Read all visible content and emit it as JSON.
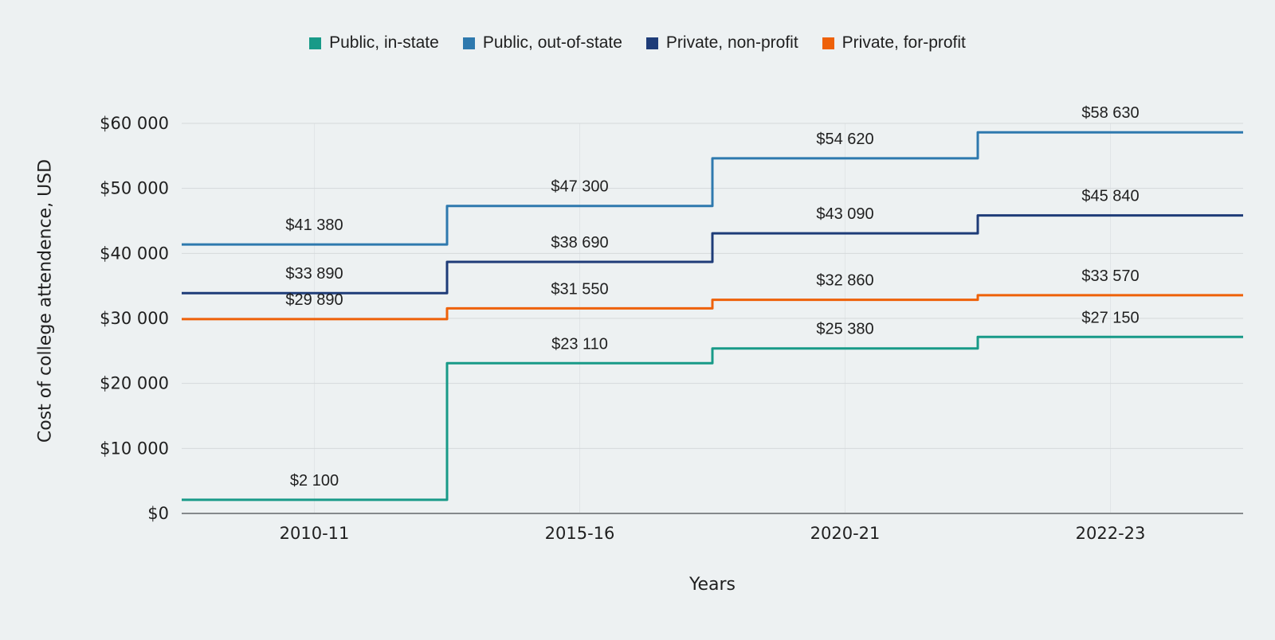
{
  "colors": {
    "background": "#edf1f2",
    "text": "#1f1f1f",
    "gridline": "#d5d9db",
    "vertical_gridline": "#e1e5e7",
    "zero_axis": "#85898c"
  },
  "legend": {
    "position": "top-center",
    "items": [
      {
        "label": "Public, in-state",
        "color": "#189a88"
      },
      {
        "label": "Public, out-of-state",
        "color": "#2e79ae"
      },
      {
        "label": "Private, non-profit",
        "color": "#1e3c78"
      },
      {
        "label": "Private, for-profit",
        "color": "#ee6109"
      }
    ]
  },
  "chart_data": {
    "type": "line",
    "variant": "step",
    "title": "",
    "xlabel": "Years",
    "ylabel": "Cost of college attendence, USD",
    "categories": [
      "2010-11",
      "2015-16",
      "2020-21",
      "2022-23"
    ],
    "series": [
      {
        "name": "Public, in-state",
        "color": "#189a88",
        "values": [
          2100,
          23110,
          25380,
          27150
        ],
        "labels": [
          "$2 100",
          "$23 110",
          "$25 380",
          "$27 150"
        ]
      },
      {
        "name": "Public, out-of-state",
        "color": "#2e79ae",
        "values": [
          41380,
          47300,
          54620,
          58630
        ],
        "labels": [
          "$41 380",
          "$47 300",
          "$54 620",
          "$58 630"
        ]
      },
      {
        "name": "Private, non-profit",
        "color": "#1e3c78",
        "values": [
          33890,
          38690,
          43090,
          45840
        ],
        "labels": [
          "$33 890",
          "$38 690",
          "$43 090",
          "$45 840"
        ]
      },
      {
        "name": "Private, for-profit",
        "color": "#ee6109",
        "values": [
          29890,
          31550,
          32860,
          33570
        ],
        "labels": [
          "$29 890",
          "$31 550",
          "$32 860",
          "$33 570"
        ]
      }
    ],
    "ylim": [
      0,
      60000
    ],
    "yticks": [
      {
        "value": 0,
        "label": "$0"
      },
      {
        "value": 10000,
        "label": "$10 000"
      },
      {
        "value": 20000,
        "label": "$20 000"
      },
      {
        "value": 30000,
        "label": "$30 000"
      },
      {
        "value": 40000,
        "label": "$40 000"
      },
      {
        "value": 50000,
        "label": "$50 000"
      },
      {
        "value": 60000,
        "label": "$60 000"
      }
    ],
    "grid": {
      "horizontal": true,
      "vertical_at_category_centers": true
    },
    "legend_position": "top-center"
  }
}
